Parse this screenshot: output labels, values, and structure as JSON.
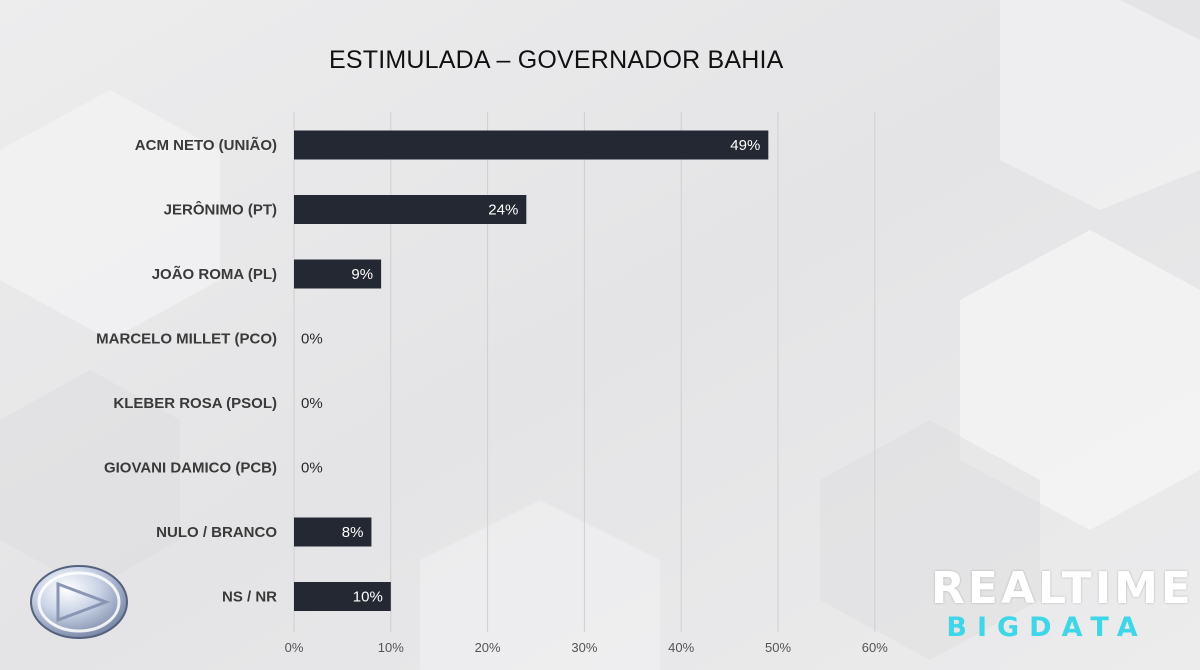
{
  "chart_data": {
    "type": "bar",
    "orientation": "horizontal",
    "title": "ESTIMULADA – GOVERNADOR BAHIA",
    "categories": [
      "ACM NETO (UNIÃO)",
      "JERÔNIMO (PT)",
      "JOÃO ROMA (PL)",
      "MARCELO MILLET (PCO)",
      "KLEBER ROSA (PSOL)",
      "GIOVANI DAMICO (PCB)",
      "NULO / BRANCO",
      "NS / NR"
    ],
    "values": [
      49,
      24,
      9,
      0,
      0,
      0,
      8,
      10
    ],
    "value_labels": [
      "49%",
      "24%",
      "9%",
      "0%",
      "0%",
      "0%",
      "8%",
      "10%"
    ],
    "xlim": [
      0,
      60
    ],
    "xticks": [
      0,
      10,
      20,
      30,
      40,
      50,
      60
    ],
    "xtick_labels": [
      "0%",
      "10%",
      "20%",
      "30%",
      "40%",
      "50%",
      "60%"
    ],
    "grid": "vertical",
    "bar_color": "#232833"
  },
  "branding": {
    "line1": "REALTIME",
    "line2": "BIGDATA",
    "line1_color": "#ffffff",
    "line2_color": "#3fd6e8",
    "logo": "record-tv-sphere-logo"
  }
}
